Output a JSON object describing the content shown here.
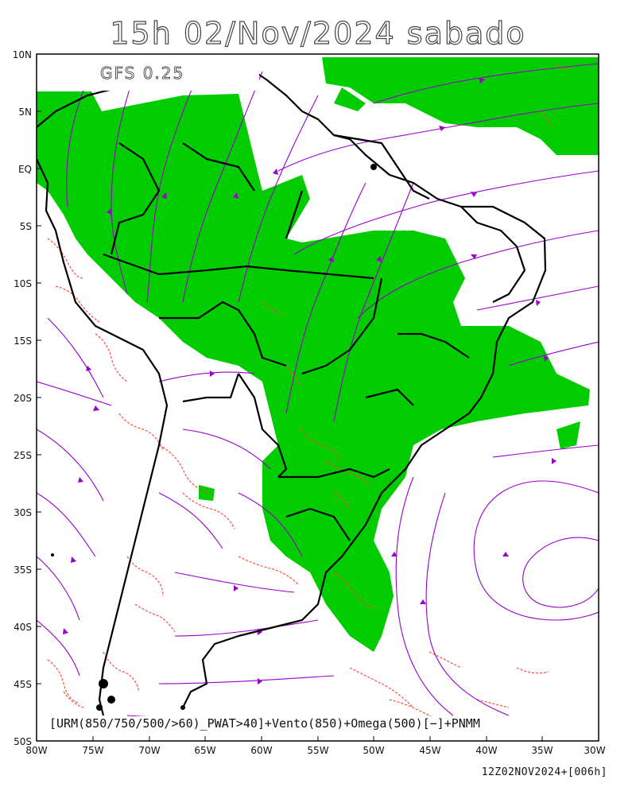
{
  "title": "15h 02/Nov/2024 sabado",
  "model_label": "GFS 0.25",
  "description": "[URM(850/750/500/>60)_PWAT>40]+Vento(850)+Omega(500)[−]+PNMM",
  "run_info": "12Z02NOV2024+[006h]",
  "lat_labels": [
    "10N",
    "5N",
    "EQ",
    "5S",
    "10S",
    "15S",
    "20S",
    "25S",
    "30S",
    "35S",
    "40S",
    "45S",
    "50S"
  ],
  "lon_labels": [
    "80W",
    "75W",
    "70W",
    "65W",
    "60W",
    "55W",
    "50W",
    "45W",
    "40W",
    "35W",
    "30W"
  ],
  "colors": {
    "humidity_fill": "#00cc00",
    "omega_contour": "#ff4b3a",
    "streamline": "#9900cc",
    "borders": "#000000",
    "frame": "#000000"
  },
  "legend_semantics": {
    "green_area": "URM>60 & PWAT>40",
    "purple_lines": "Vento(850)",
    "red_dashed": "Omega(500) negative"
  }
}
